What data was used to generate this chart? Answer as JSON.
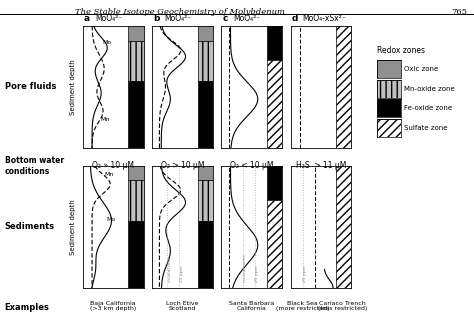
{
  "title": "The Stable Isotope Geochemistry of Molybdenum",
  "page_num": "765",
  "panel_labels": [
    "a",
    "b",
    "c",
    "d"
  ],
  "panel_titles": [
    "MoO₄²⁻",
    "MoO₄²⁻",
    "MoO₄²⁻",
    "MoO₄-xSx²⁻"
  ],
  "bottom_water": [
    "O₂ » 10 μM",
    "O₂ > 10 μM",
    "O₂ < 10 μM",
    "H₂S  > 11 μM"
  ],
  "examples": [
    "Baja California\n(>3 km depth)",
    "Loch Etive\nScotland",
    "Santa Barbara\nCalifornia",
    "Black Sea\n(more restricted)",
    "Cariaco Trench\n(less restricted)"
  ],
  "legend_title": "Redox zones",
  "legend_items": [
    "Oxic zone",
    "Mn-oxide zone",
    "Fe-oxide zone",
    "Sulfate zone"
  ],
  "colors": {
    "oxic": "#909090",
    "mn_oxide": "#c0c0c0",
    "fe_oxide": "#000000",
    "background": "#ffffff"
  }
}
